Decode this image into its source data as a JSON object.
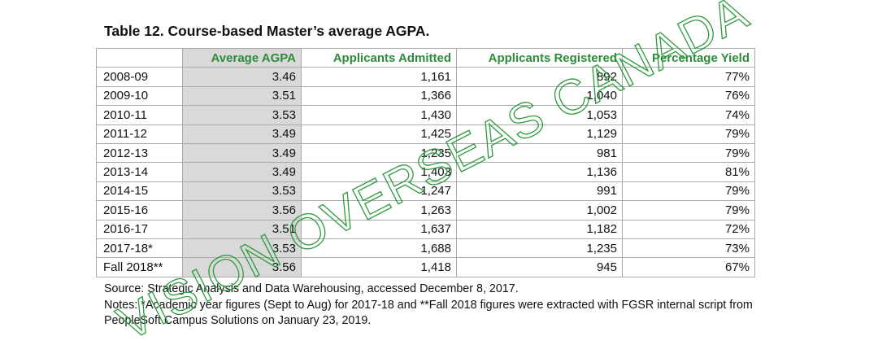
{
  "title": "Table 12. Course-based Master’s average AGPA.",
  "table": {
    "headers": [
      "",
      "Average AGPA",
      "Applicants Admitted",
      "Applicants Registered",
      "Percentage Yield"
    ],
    "rows": [
      [
        "2008-09",
        "3.46",
        "1,161",
        "892",
        "77%"
      ],
      [
        "2009-10",
        "3.51",
        "1,366",
        "1,040",
        "76%"
      ],
      [
        "2010-11",
        "3.53",
        "1,430",
        "1,053",
        "74%"
      ],
      [
        "2011-12",
        "3.49",
        "1,425",
        "1,129",
        "79%"
      ],
      [
        "2012-13",
        "3.49",
        "1,235",
        "981",
        "79%"
      ],
      [
        "2013-14",
        "3.49",
        "1,403",
        "1,136",
        "81%"
      ],
      [
        "2014-15",
        "3.53",
        "1,247",
        "991",
        "79%"
      ],
      [
        "2015-16",
        "3.56",
        "1,263",
        "1,002",
        "79%"
      ],
      [
        "2016-17",
        "3.51",
        "1,637",
        "1,182",
        "72%"
      ],
      [
        "2017-18*",
        "3.53",
        "1,688",
        "1,235",
        "73%"
      ],
      [
        "Fall 2018**",
        "3.56",
        "1,418",
        "945",
        "67%"
      ]
    ]
  },
  "source": "Source: Strategic Analysis and Data Warehousing, accessed December 8, 2017.",
  "notes": "Notes: *Academic year figures (Sept to Aug) for 2017-18 and **Fall 2018 figures were extracted with FGSR internal script from PeopleSoft Campus Solutions on January 23, 2019.",
  "watermark": "VISION OVERSEAS CANADA"
}
